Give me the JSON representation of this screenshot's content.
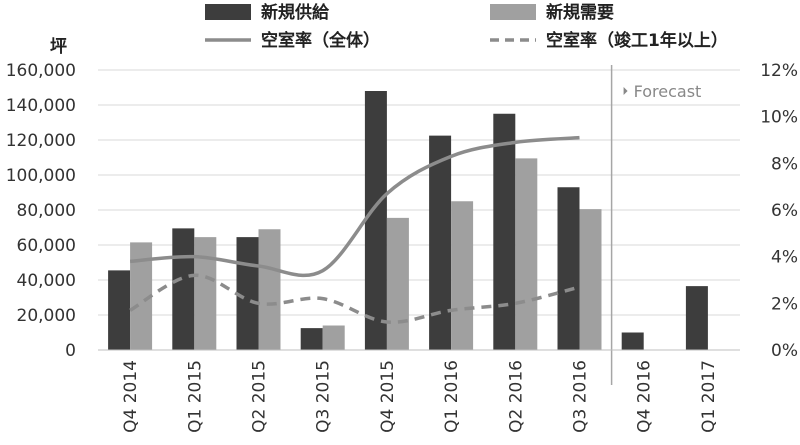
{
  "chart_data": {
    "type": "bar",
    "y_unit": "坪",
    "categories": [
      "Q4 2014",
      "Q1 2015",
      "Q2 2015",
      "Q3 2015",
      "Q4 2015",
      "Q1 2016",
      "Q2 2016",
      "Q3 2016",
      "Q4 2016",
      "Q1 2017"
    ],
    "series": [
      {
        "name": "新規供給",
        "kind": "bar",
        "axis": "left",
        "color": "#3d3d3d",
        "values": [
          45500,
          69500,
          64500,
          12500,
          148000,
          122500,
          135000,
          93000,
          10000,
          36500
        ]
      },
      {
        "name": "新規需要",
        "kind": "bar",
        "axis": "left",
        "color": "#a0a0a0",
        "values": [
          61500,
          64500,
          69000,
          14000,
          75500,
          85000,
          109500,
          80500,
          null,
          null
        ]
      },
      {
        "name": "空室率（全体）",
        "kind": "line",
        "axis": "right",
        "style": "solid",
        "color": "#8c8c8c",
        "values": [
          3.8,
          4.0,
          3.6,
          3.4,
          6.7,
          8.3,
          8.9,
          9.1,
          null,
          null
        ]
      },
      {
        "name": "空室率（竣工1年以上）",
        "kind": "line",
        "axis": "right",
        "style": "dashed",
        "color": "#8c8c8c",
        "values": [
          1.7,
          3.2,
          2.0,
          2.2,
          1.2,
          1.7,
          2.0,
          2.7,
          null,
          null
        ]
      }
    ],
    "y_left": {
      "min": 0,
      "max": 160000,
      "ticks": [
        "0",
        "20,000",
        "40,000",
        "60,000",
        "80,000",
        "100,000",
        "120,000",
        "140,000",
        "160,000"
      ]
    },
    "y_right": {
      "min": 0,
      "max": 12,
      "ticks": [
        "0%",
        "2%",
        "4%",
        "6%",
        "8%",
        "10%",
        "12%"
      ]
    },
    "forecast_label": "Forecast",
    "forecast_start": "Q4 2016",
    "legend_position": "top",
    "grid": true
  }
}
